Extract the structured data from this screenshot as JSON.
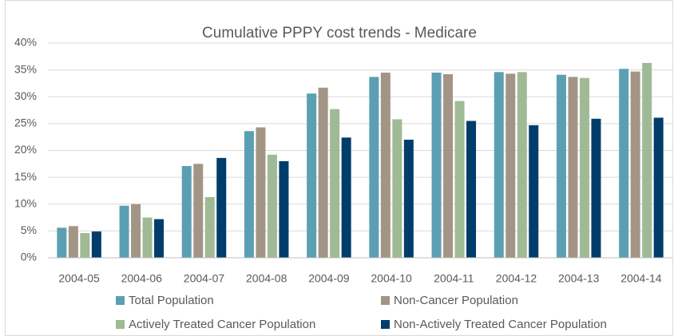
{
  "chart_data": {
    "type": "bar",
    "title": "Cumulative PPPY cost trends - Medicare",
    "categories": [
      "2004-05",
      "2004-06",
      "2004-07",
      "2004-08",
      "2004-09",
      "2004-10",
      "2004-11",
      "2004-12",
      "2004-13",
      "2004-14"
    ],
    "series": [
      {
        "name": "Total Population",
        "color": "#5b9fb3",
        "values": [
          5.6,
          9.7,
          17.1,
          23.6,
          30.6,
          33.7,
          34.5,
          34.6,
          34.1,
          35.2
        ]
      },
      {
        "name": "Non-Cancer Population",
        "color": "#a39586",
        "values": [
          5.9,
          10.0,
          17.5,
          24.3,
          31.7,
          34.5,
          34.2,
          34.3,
          33.7,
          34.7
        ]
      },
      {
        "name": "Actively Treated Cancer Population",
        "color": "#9fba94",
        "values": [
          4.6,
          7.5,
          11.3,
          19.2,
          27.7,
          25.8,
          29.2,
          34.6,
          33.5,
          36.3
        ]
      },
      {
        "name": "Non-Actively Treated Cancer Population",
        "color": "#003d6b",
        "values": [
          4.9,
          7.2,
          18.6,
          18.0,
          22.4,
          22.0,
          25.5,
          24.7,
          25.9,
          26.1
        ]
      }
    ],
    "ylim": [
      0,
      40
    ],
    "yticks": [
      {
        "value": 0,
        "label": "0%"
      },
      {
        "value": 5,
        "label": "5%"
      },
      {
        "value": 10,
        "label": "10%"
      },
      {
        "value": 15,
        "label": "15%"
      },
      {
        "value": 20,
        "label": "20%"
      },
      {
        "value": 25,
        "label": "25%"
      },
      {
        "value": 30,
        "label": "30%"
      },
      {
        "value": 35,
        "label": "35%"
      },
      {
        "value": 40,
        "label": "40%"
      }
    ],
    "grid": true,
    "legend": "bottom"
  }
}
